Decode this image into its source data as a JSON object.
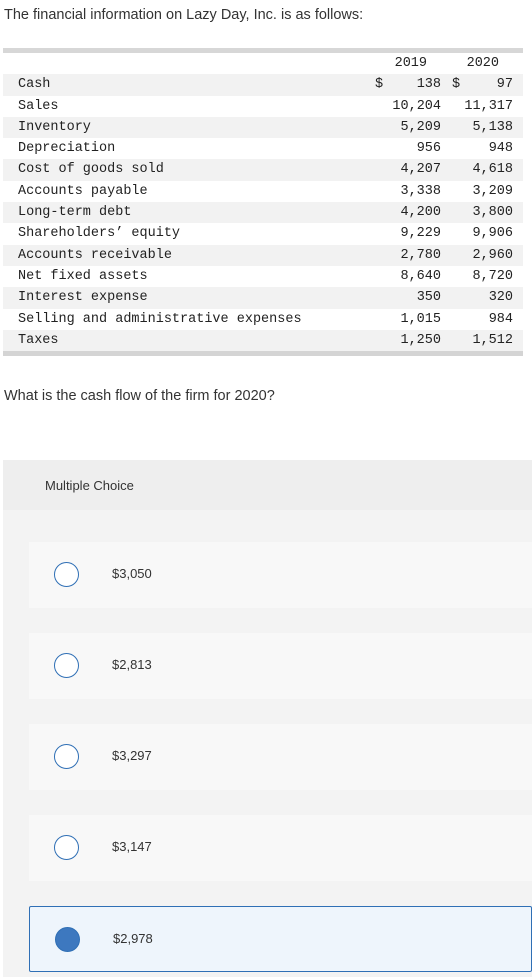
{
  "intro": "The financial information on Lazy Day, Inc. is as follows:",
  "table": {
    "years": [
      "2019",
      "2020"
    ],
    "rows": [
      {
        "label": "Cash",
        "v2019": "138",
        "v2020": "97",
        "dollar": "$"
      },
      {
        "label": "Sales",
        "v2019": "10,204",
        "v2020": "11,317"
      },
      {
        "label": "Inventory",
        "v2019": "5,209",
        "v2020": "5,138"
      },
      {
        "label": "Depreciation",
        "v2019": "956",
        "v2020": "948"
      },
      {
        "label": "Cost of goods sold",
        "v2019": "4,207",
        "v2020": "4,618"
      },
      {
        "label": "Accounts payable",
        "v2019": "3,338",
        "v2020": "3,209"
      },
      {
        "label": "Long-term debt",
        "v2019": "4,200",
        "v2020": "3,800"
      },
      {
        "label": "Shareholders’ equity",
        "v2019": "9,229",
        "v2020": "9,906"
      },
      {
        "label": "Accounts receivable",
        "v2019": "2,780",
        "v2020": "2,960"
      },
      {
        "label": "Net fixed assets",
        "v2019": "8,640",
        "v2020": "8,720"
      },
      {
        "label": "Interest expense",
        "v2019": "350",
        "v2020": "320"
      },
      {
        "label": "Selling and administrative expenses",
        "v2019": "1,015",
        "v2020": "984"
      },
      {
        "label": "Taxes",
        "v2019": "1,250",
        "v2020": "1,512"
      }
    ]
  },
  "question": "What is the cash flow of the firm for 2020?",
  "multiple_choice": {
    "title": "Multiple Choice",
    "options": [
      {
        "label": "$3,050",
        "selected": false
      },
      {
        "label": "$2,813",
        "selected": false
      },
      {
        "label": "$3,297",
        "selected": false
      },
      {
        "label": "$3,147",
        "selected": false
      },
      {
        "label": "$2,978",
        "selected": true
      }
    ]
  },
  "colors": {
    "accent": "#2f6fb5",
    "selected_fill": "#3d78bf"
  }
}
